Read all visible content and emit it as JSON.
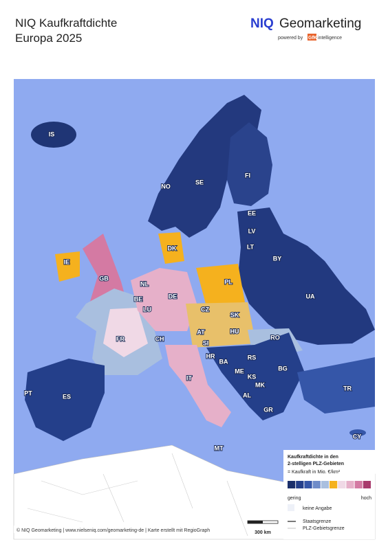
{
  "header": {
    "title_line1": "NIQ Kaufkraftdichte",
    "title_line2": "Europa 2025",
    "brand_niq": "NIQ",
    "brand_name": "Geomarketing",
    "powered_by": "powered by",
    "gfk": "GfK",
    "intelligence": "intelligence"
  },
  "map": {
    "labels": [
      "IS",
      "NO",
      "SE",
      "FI",
      "EE",
      "LV",
      "LT",
      "BY",
      "DK",
      "IE",
      "GB",
      "NL",
      "BE",
      "LU",
      "DE",
      "PL",
      "CZ",
      "SK",
      "UA",
      "AT",
      "HU",
      "SI",
      "HR",
      "RO",
      "FR",
      "CH",
      "BA",
      "RS",
      "ME",
      "KS",
      "BG",
      "MK",
      "AL",
      "IT",
      "PT",
      "ES",
      "TR",
      "GR",
      "MT",
      "CY"
    ]
  },
  "legend": {
    "title_line1": "Kaufkraftdichte in den",
    "title_line2": "2-stelligen PLZ-Gebieten",
    "unit": "= Kaufkraft in Mio. €/km²",
    "colors": [
      "#1b2f6b",
      "#243f8a",
      "#3556a8",
      "#6f8cc9",
      "#a9bfdf",
      "#f5b11e",
      "#f0d9e6",
      "#e6b0c9",
      "#d47aa3",
      "#a83a6c"
    ],
    "low": "gering",
    "high": "hoch",
    "no_data": "keine Angabe",
    "state_border": "Staatsgrenze",
    "plz_border": "PLZ-Gebietsgrenze"
  },
  "footer": {
    "credit": "© NIQ Geomarketing | www.nielseniq.com/geomarketing-de | Karte erstellt mit RegioGraph",
    "scale": "300 km"
  }
}
